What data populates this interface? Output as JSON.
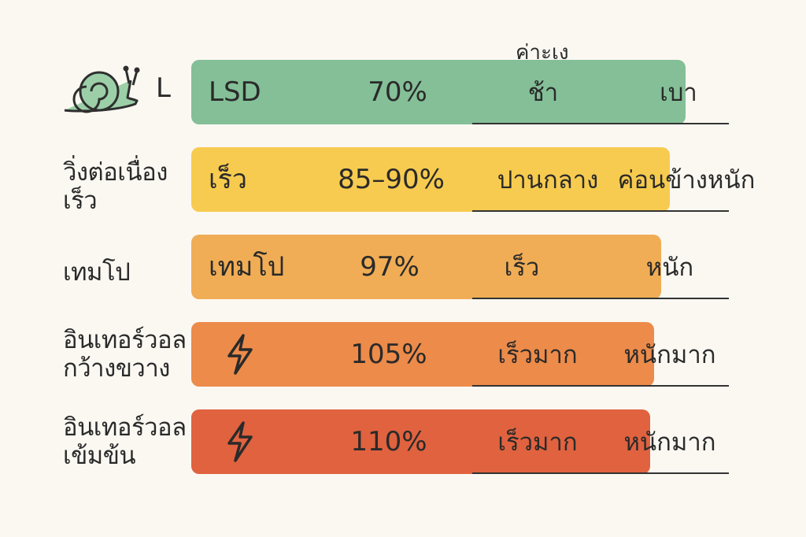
{
  "chart_data": {
    "type": "table",
    "header": {
      "effort_note": "ค่าะเง"
    },
    "colors": [
      "#84bf97",
      "#f7cb4f",
      "#f0ad55",
      "#ec8b4a",
      "#e0623f"
    ],
    "rows": [
      {
        "label": "L",
        "label_icon": "snail-icon",
        "bar_name": "LSD",
        "bar_icon": "",
        "percent": "70%",
        "percent_value": 70,
        "speed": "ช้า",
        "effort": "เบา"
      },
      {
        "label": "วิ่งต่อเนื่อง\nเร็ว",
        "label_icon": "",
        "bar_name": "เร็ว",
        "bar_icon": "",
        "percent": "85–90%",
        "percent_value": 87.5,
        "speed": "ปานกลาง",
        "effort": "ค่อนข้างหนัก"
      },
      {
        "label": "เทมโป",
        "label_icon": "",
        "bar_name": "เทมโป",
        "bar_icon": "",
        "percent": "97%",
        "percent_value": 97,
        "speed": "เร็ว",
        "effort": "หนัก"
      },
      {
        "label": "อินเทอร์วอล\nกว้างขวาง",
        "label_icon": "",
        "bar_name": "",
        "bar_icon": "lightning-icon",
        "percent": "105%",
        "percent_value": 105,
        "speed": "เร็วมาก",
        "effort": "หนักมาก"
      },
      {
        "label": "อินเทอร์วอล\nเข้มข้น",
        "label_icon": "",
        "bar_name": "",
        "bar_icon": "lightning-icon",
        "percent": "110%",
        "percent_value": 110,
        "speed": "เร็วมาก",
        "effort": "หนักมาก"
      }
    ]
  }
}
